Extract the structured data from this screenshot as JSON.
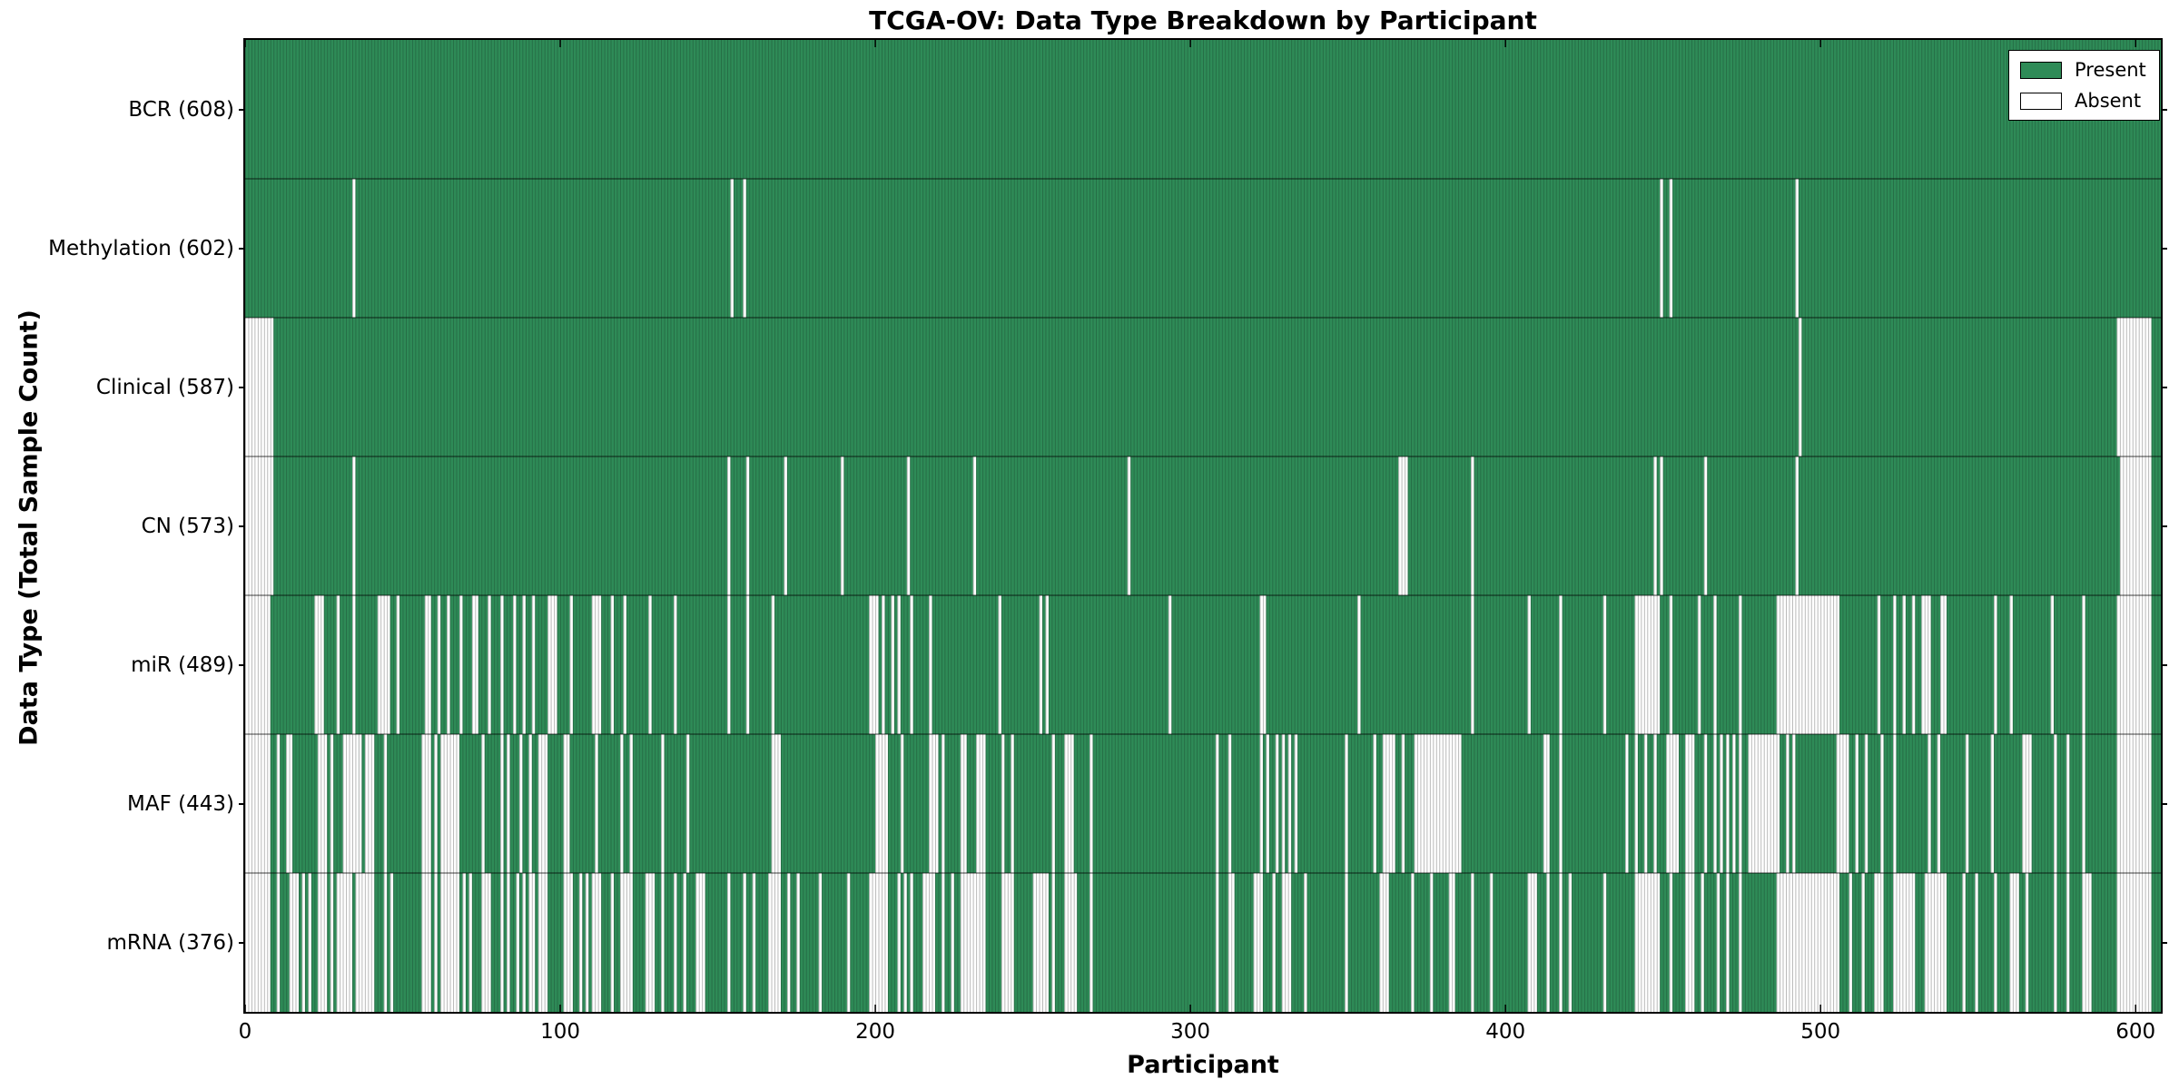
{
  "chart_data": {
    "type": "heatmap",
    "title": "TCGA-OV: Data Type Breakdown by Participant",
    "xlabel": "Participant",
    "ylabel": "Data Type (Total Sample Count)",
    "x_ticks": [
      0,
      100,
      200,
      300,
      400,
      500,
      600
    ],
    "n_participants": 608,
    "grid": false,
    "legend_position": "upper right",
    "colors": {
      "present": "#2e8b57",
      "present_edge": "#256b44",
      "absent": "#ffffff",
      "absent_edge": "#b3b3b3",
      "frame": "#000000"
    },
    "legend": [
      {
        "label": "Present",
        "color": "#2e8b57"
      },
      {
        "label": "Absent",
        "color": "#ffffff"
      }
    ],
    "rows": [
      {
        "label": "BCR (608)",
        "data_type": "BCR",
        "present_count": 608,
        "absent": []
      },
      {
        "label": "Methylation (602)",
        "data_type": "Methylation",
        "present_count": 602,
        "absent": [
          34,
          154,
          158,
          449,
          452,
          492
        ]
      },
      {
        "label": "Clinical (587)",
        "data_type": "Clinical",
        "present_count": 587,
        "absent": [
          "0-8",
          493,
          "594-604"
        ]
      },
      {
        "label": "CN (573)",
        "data_type": "CN",
        "present_count": 573,
        "absent": [
          "0-8",
          34,
          153,
          159,
          171,
          189,
          210,
          231,
          280,
          "366-368",
          389,
          447,
          449,
          463,
          492,
          "595-604"
        ]
      },
      {
        "label": "miR (489)",
        "data_type": "miR",
        "present_count": 489,
        "absent": [
          "0-7",
          "22-24",
          29,
          34,
          "42-45",
          48,
          "57-58",
          61,
          64,
          68,
          "72-73",
          77,
          81,
          85,
          88,
          91,
          "96-98",
          103,
          "110-112",
          116,
          120,
          128,
          136,
          153,
          159,
          167,
          "198-200",
          202,
          205,
          207,
          211,
          217,
          239,
          252,
          254,
          293,
          "322-323",
          353,
          389,
          407,
          417,
          431,
          "441-448",
          452,
          461,
          466,
          474,
          "486-505",
          518,
          523,
          526,
          529,
          "532-534",
          "538-539",
          555,
          560,
          573,
          583,
          "594-604"
        ]
      },
      {
        "label": "MAF (443)",
        "data_type": "MAF",
        "present_count": 443,
        "absent": [
          "0-7",
          10,
          "13-14",
          "23-25",
          27,
          "31-35",
          36,
          "38-40",
          44,
          "56-58",
          60,
          "62-66",
          67,
          75,
          81,
          83,
          87,
          90,
          "93-95",
          "101-102",
          111,
          119,
          122,
          132,
          140,
          "167-169",
          "200-203",
          208,
          "217-219",
          221,
          "227-228",
          "232-234",
          240,
          243,
          256,
          "260-262",
          268,
          308,
          312,
          322,
          324,
          327,
          329,
          331,
          333,
          349,
          358,
          "361-364",
          367,
          "371-385",
          "412-413",
          417,
          438,
          441,
          444,
          447,
          "451-454",
          "457-459",
          463,
          466,
          468,
          470,
          472,
          474,
          "477-486",
          489,
          491,
          "505-508",
          511,
          514,
          519,
          523,
          534,
          537,
          546,
          554,
          "564-566",
          574,
          578,
          583,
          "594-604"
        ]
      },
      {
        "label": "mRNA (376)",
        "data_type": "mRNA",
        "present_count": 376,
        "absent": [
          "0-7",
          10,
          "14-16",
          18,
          20,
          "23-25",
          27,
          "29-33",
          "35-40",
          44,
          46,
          "56-58",
          60,
          "62-67",
          69,
          71,
          "75-77",
          81,
          83,
          86,
          88,
          "90-91",
          "93-95",
          "101-103",
          106,
          108,
          "110-112",
          116,
          "119-122",
          "127-129",
          132,
          136,
          139,
          "143-145",
          153,
          158,
          161,
          "166-169",
          172,
          175,
          182,
          191,
          "198-203",
          207,
          209,
          211,
          "215-218",
          221,
          224,
          "227-234",
          "240-243",
          "250-254",
          256,
          "260-263",
          268,
          308,
          "312-313",
          "320-322",
          326,
          "329-331",
          336,
          349,
          "360-362",
          370,
          376,
          "382-383",
          389,
          395,
          "407-409",
          413,
          417,
          420,
          431,
          "441-448",
          452,
          "457-459",
          462,
          467,
          470,
          474,
          "486-505",
          509,
          513,
          "517-519",
          "523-529",
          "533-539",
          545,
          549,
          555,
          "560-562",
          565,
          574,
          578,
          "583-585",
          "594-604"
        ]
      }
    ]
  }
}
